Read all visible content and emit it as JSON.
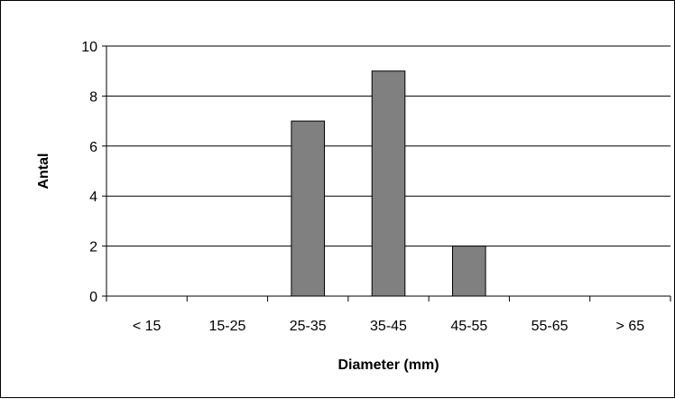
{
  "chart_data": {
    "type": "bar",
    "title": "",
    "xlabel": "Diameter (mm)",
    "ylabel": "Antal",
    "categories": [
      "< 15",
      "15-25",
      "25-35",
      "35-45",
      "45-55",
      "55-65",
      "> 65"
    ],
    "values": [
      0,
      0,
      7,
      9,
      2,
      0,
      0
    ],
    "ylim": [
      0,
      10
    ],
    "yticks": [
      0,
      2,
      4,
      6,
      8,
      10
    ],
    "grid": true,
    "legend": "none",
    "colors": {
      "bar_fill": "#808080",
      "bar_stroke": "#000000",
      "grid": "#000000",
      "axis": "#000000",
      "background": "#ffffff"
    }
  }
}
